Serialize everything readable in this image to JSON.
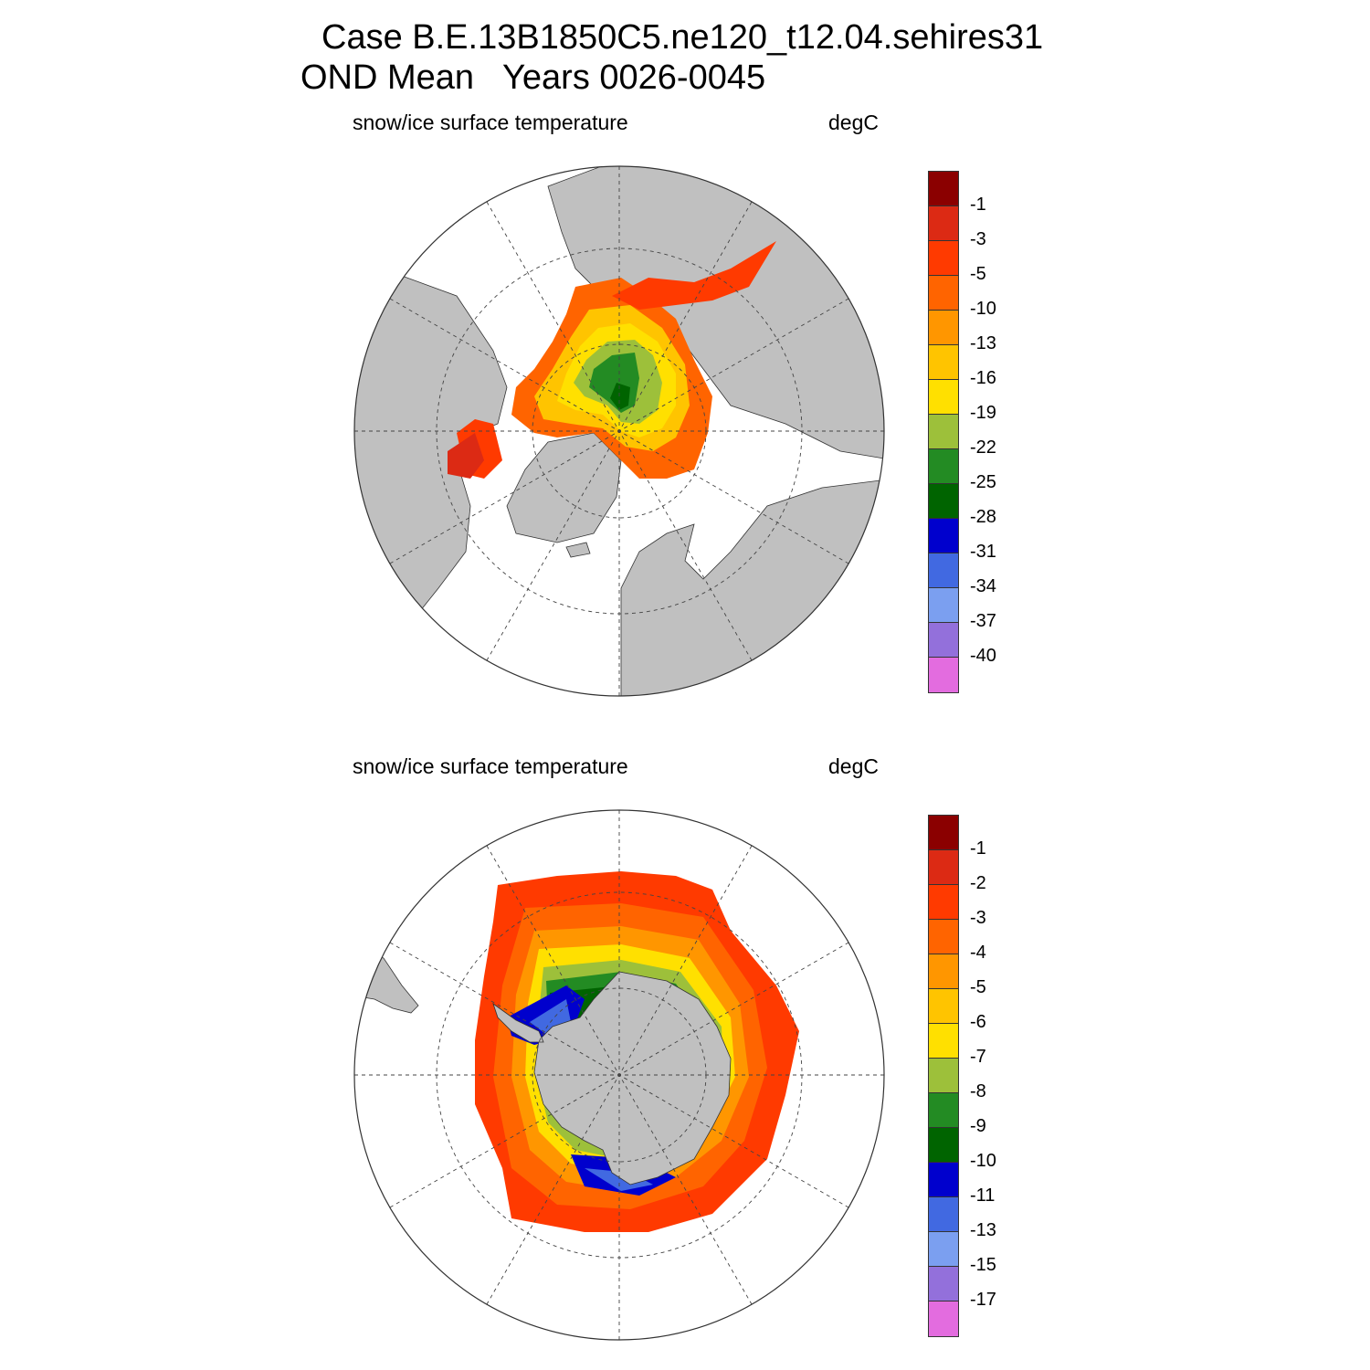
{
  "figure": {
    "title_line1": "Case B.E.13B1850C5.ne120_t12.04.sehires31",
    "title_line2": "OND Mean   Years 0026-0045"
  },
  "panels": [
    {
      "hemisphere": "north",
      "variable_label": "snow/ice surface temperature",
      "units_label": "degC",
      "legend": {
        "tick_labels": [
          "-1",
          "-3",
          "-5",
          "-10",
          "-13",
          "-16",
          "-19",
          "-22",
          "-25",
          "-28",
          "-31",
          "-34",
          "-37",
          "-40"
        ],
        "colors": [
          "#8b0000",
          "#dc2a14",
          "#ff3a00",
          "#ff6400",
          "#ff9600",
          "#ffc400",
          "#ffe000",
          "#9dc03a",
          "#238b23",
          "#006400",
          "#0000cd",
          "#4169e1",
          "#7b9ff0",
          "#9370db",
          "#e36cdf"
        ]
      }
    },
    {
      "hemisphere": "south",
      "variable_label": "snow/ice surface temperature",
      "units_label": "degC",
      "legend": {
        "tick_labels": [
          "-1",
          "-2",
          "-3",
          "-4",
          "-5",
          "-6",
          "-7",
          "-8",
          "-9",
          "-10",
          "-11",
          "-13",
          "-15",
          "-17"
        ],
        "colors": [
          "#8b0000",
          "#dc2a14",
          "#ff3a00",
          "#ff6400",
          "#ff9600",
          "#ffc400",
          "#ffe000",
          "#9dc03a",
          "#238b23",
          "#006400",
          "#0000cd",
          "#4169e1",
          "#7b9ff0",
          "#9370db",
          "#e36cdf"
        ]
      }
    }
  ],
  "map_colors": {
    "land": "#c0c0c0",
    "ocean": "#ffffff",
    "grid": "#444444"
  }
}
